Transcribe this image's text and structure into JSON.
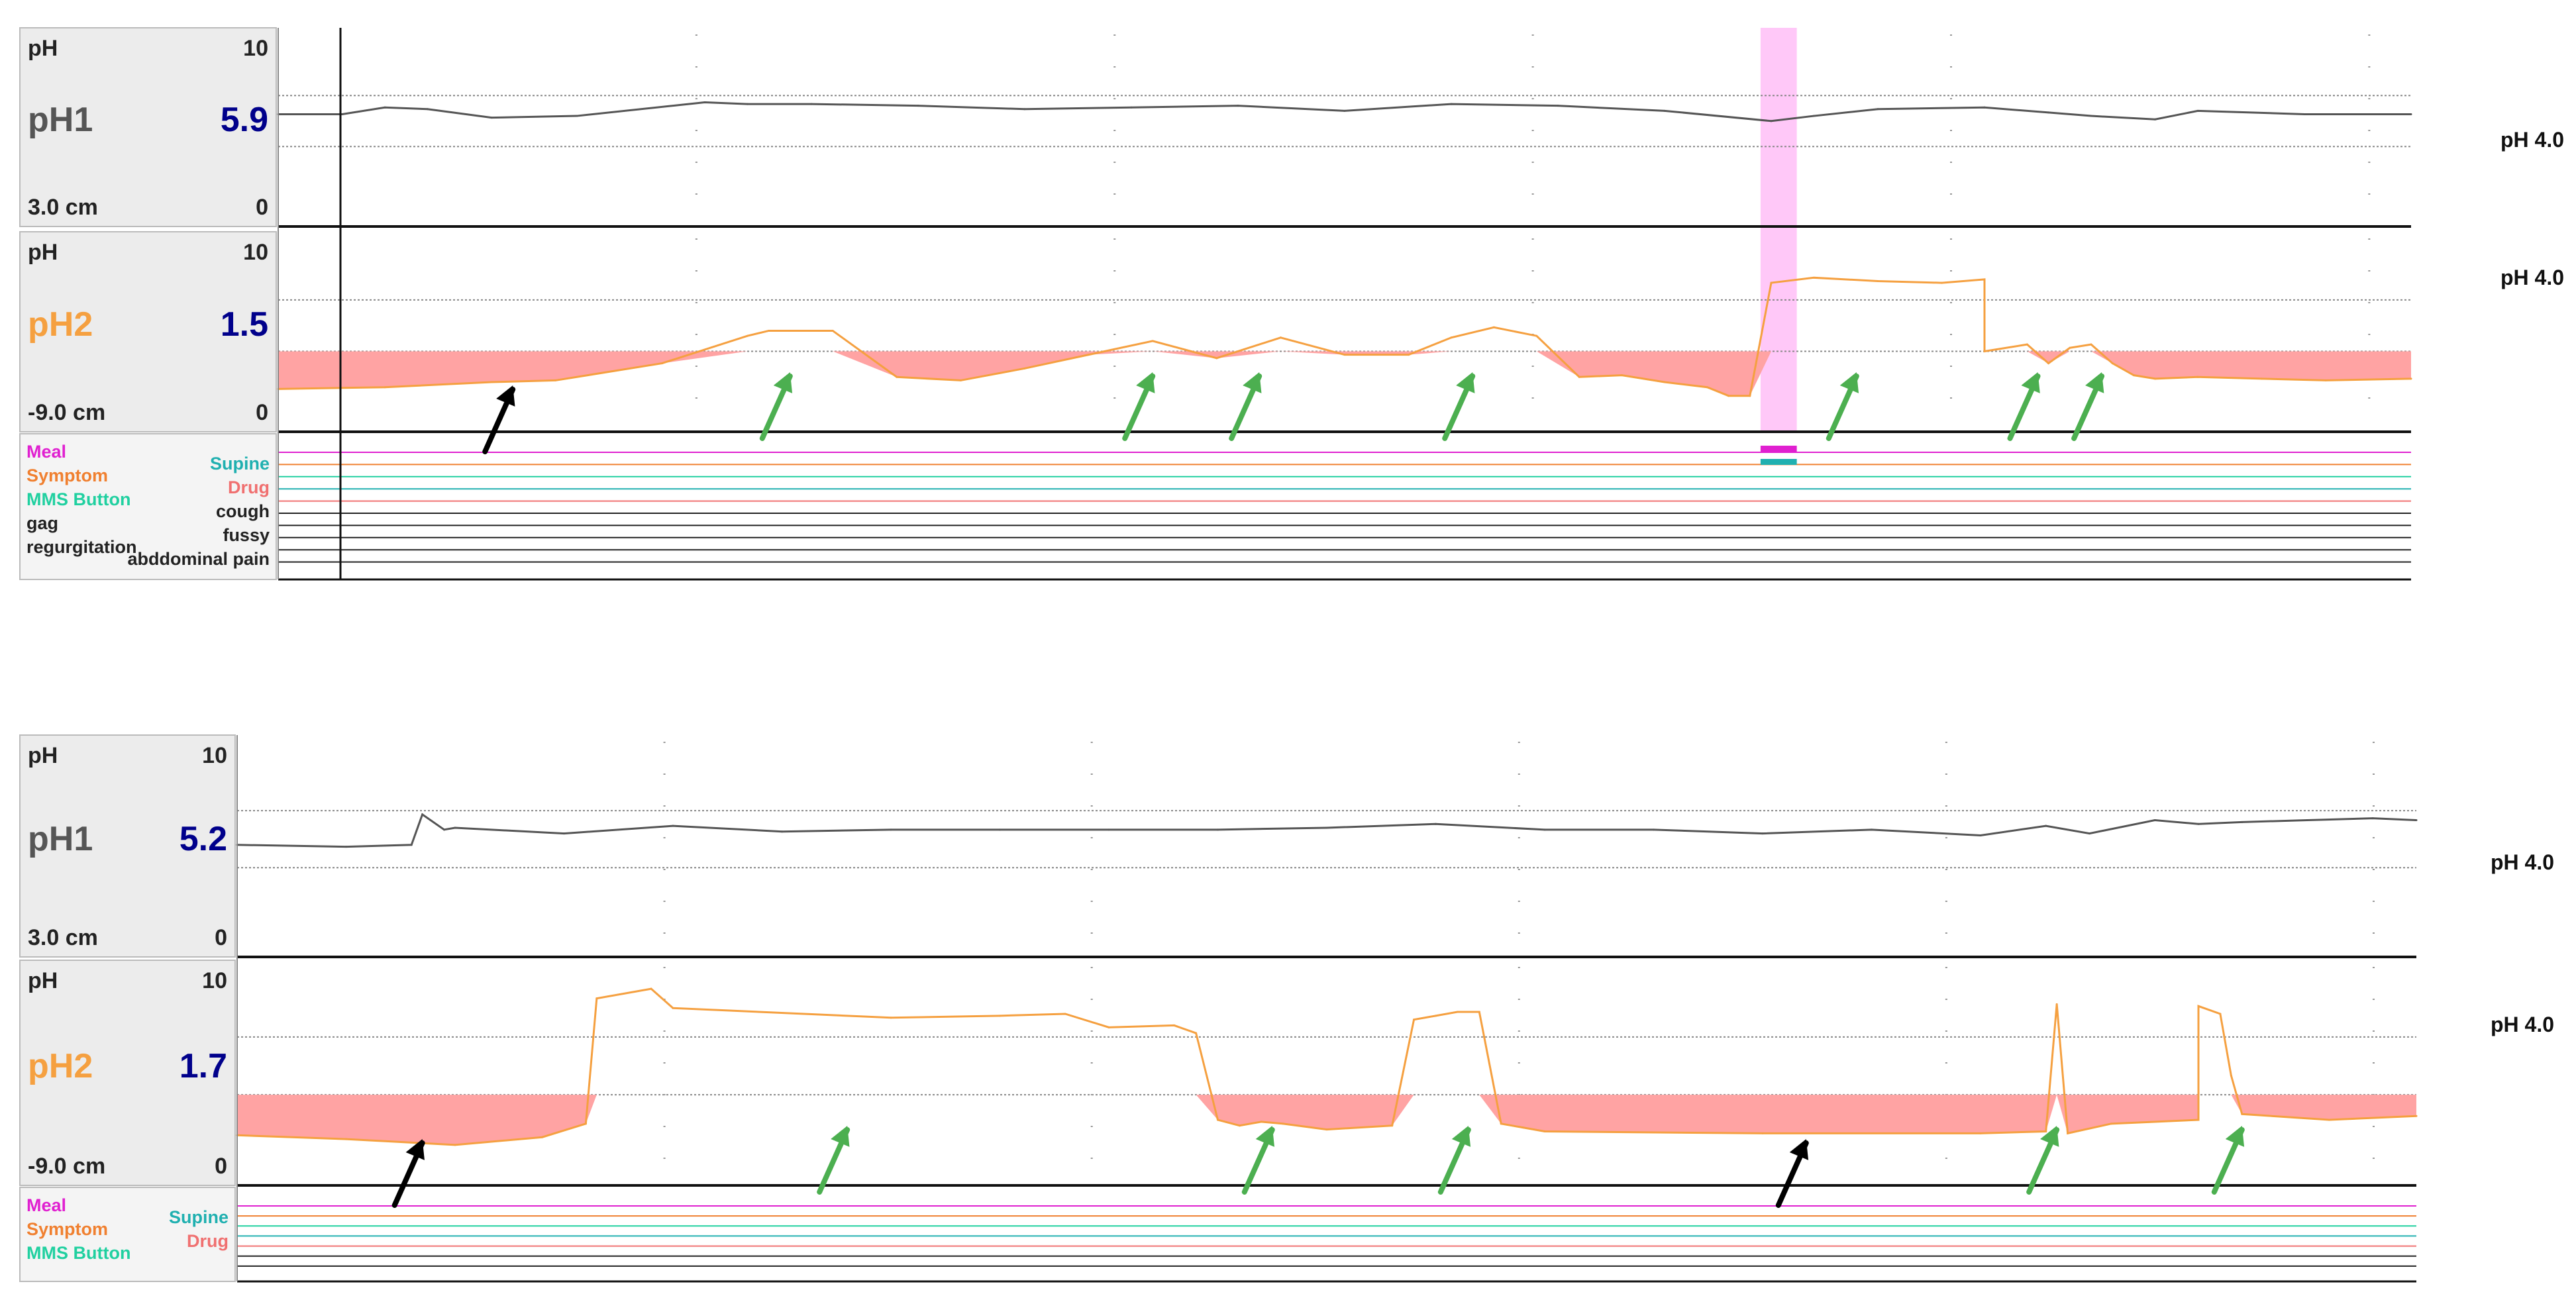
{
  "colors": {
    "ph1_line": "#555555",
    "ph2_line": "#f5a040",
    "acid_fill": "#ffa3a3",
    "value_blue": "#00008b",
    "ph2_label": "#f5a040",
    "panel_bg": "#ececec",
    "meal": "#e020d0",
    "symptom": "#f08030",
    "mms": "#20d0a0",
    "supine": "#20b0b0",
    "drug": "#f07070",
    "dark": "#222222",
    "green_arrow": "#4caf50",
    "black_arrow": "#000000",
    "highlight": "#ffc8f8"
  },
  "threshold_label": "pH 4.0",
  "recordings": [
    {
      "channels": [
        {
          "unit": "pH",
          "max": "10",
          "min": "0",
          "name": "pH1",
          "value": "5.9",
          "position": "3.0 cm"
        },
        {
          "unit": "pH",
          "max": "10",
          "min": "0",
          "name": "pH2",
          "value": "1.5",
          "position": "-9.0 cm"
        }
      ],
      "events_left": [
        "Meal",
        "Symptom",
        "MMS Button",
        "gag",
        "regurgitation"
      ],
      "events_right": [
        "Supine",
        "Drug",
        "cough",
        "fussy",
        "abddominal pain"
      ],
      "has_marker_band": true
    },
    {
      "channels": [
        {
          "unit": "pH",
          "max": "10",
          "min": "0",
          "name": "pH1",
          "value": "5.2",
          "position": "3.0 cm"
        },
        {
          "unit": "pH",
          "max": "10",
          "min": "0",
          "name": "pH2",
          "value": "1.7",
          "position": "-9.0 cm"
        }
      ],
      "events_left": [
        "Meal",
        "Symptom",
        "MMS Button"
      ],
      "events_right": [
        "Supine",
        "Drug"
      ],
      "has_marker_band": false
    }
  ],
  "chart_data": [
    {
      "type": "line",
      "title": "",
      "xlabel": "",
      "ylabel": "pH",
      "ylim": [
        0,
        10
      ],
      "threshold": 4.0,
      "grid": "dotted",
      "series": [
        {
          "name": "pH1",
          "x": [
            0,
            0.03,
            0.05,
            0.07,
            0.1,
            0.14,
            0.2,
            0.22,
            0.25,
            0.3,
            0.35,
            0.4,
            0.45,
            0.5,
            0.55,
            0.6,
            0.65,
            0.7,
            0.72,
            0.75,
            0.8,
            0.83,
            0.85,
            0.88,
            0.9,
            0.95,
            1
          ],
          "y": [
            5.9,
            5.9,
            6.3,
            6.2,
            5.7,
            5.8,
            6.6,
            6.5,
            6.5,
            6.4,
            6.2,
            6.3,
            6.4,
            6.1,
            6.5,
            6.4,
            6.1,
            5.5,
            5.8,
            6.2,
            6.3,
            6.0,
            5.8,
            5.6,
            6.1,
            5.9,
            5.9
          ]
        },
        {
          "name": "pH2",
          "x": [
            0,
            0.05,
            0.1,
            0.13,
            0.18,
            0.22,
            0.23,
            0.26,
            0.29,
            0.32,
            0.35,
            0.38,
            0.41,
            0.44,
            0.47,
            0.5,
            0.53,
            0.55,
            0.57,
            0.59,
            0.61,
            0.63,
            0.65,
            0.67,
            0.68,
            0.69,
            0.7,
            0.72,
            0.75,
            0.78,
            0.8,
            0.8,
            0.82,
            0.83,
            0.84,
            0.85,
            0.86,
            0.87,
            0.88,
            0.9,
            0.93,
            0.96,
            1
          ],
          "y": [
            1.8,
            1.9,
            2.2,
            2.3,
            3.3,
            4.9,
            5.2,
            5.2,
            2.5,
            2.3,
            3.0,
            3.8,
            4.6,
            3.6,
            4.8,
            3.8,
            3.8,
            4.8,
            5.4,
            4.9,
            2.5,
            2.6,
            2.2,
            1.9,
            1.4,
            1.4,
            8.0,
            8.3,
            8.1,
            8.0,
            8.2,
            4.0,
            4.4,
            3.3,
            4.2,
            4.4,
            3.3,
            2.6,
            2.4,
            2.5,
            2.4,
            2.3,
            2.4
          ]
        }
      ],
      "annotations": {
        "black_arrows_x": [
          0.11
        ],
        "green_arrows_x": [
          0.24,
          0.41,
          0.46,
          0.56,
          0.74,
          0.825,
          0.855
        ]
      },
      "highlight_region_x": [
        0.695,
        0.712
      ]
    },
    {
      "type": "line",
      "title": "",
      "xlabel": "",
      "ylabel": "pH",
      "ylim": [
        0,
        10
      ],
      "threshold": 4.0,
      "grid": "dotted",
      "series": [
        {
          "name": "pH1",
          "x": [
            0,
            0.05,
            0.08,
            0.085,
            0.095,
            0.1,
            0.15,
            0.2,
            0.25,
            0.3,
            0.35,
            0.4,
            0.45,
            0.5,
            0.55,
            0.6,
            0.65,
            0.7,
            0.75,
            0.8,
            0.83,
            0.85,
            0.88,
            0.9,
            0.92,
            0.95,
            0.98,
            1
          ],
          "y": [
            5.2,
            5.1,
            5.2,
            6.8,
            6.0,
            6.1,
            5.8,
            6.2,
            5.9,
            6.0,
            6.0,
            6.0,
            6.0,
            6.1,
            6.3,
            6.0,
            6.0,
            5.8,
            6.0,
            5.7,
            6.2,
            5.8,
            6.5,
            6.3,
            6.4,
            6.5,
            6.6,
            6.5
          ]
        },
        {
          "name": "pH2",
          "x": [
            0,
            0.05,
            0.1,
            0.14,
            0.16,
            0.165,
            0.19,
            0.2,
            0.3,
            0.35,
            0.38,
            0.4,
            0.43,
            0.44,
            0.45,
            0.46,
            0.47,
            0.48,
            0.5,
            0.53,
            0.54,
            0.55,
            0.56,
            0.57,
            0.58,
            0.59,
            0.6,
            0.7,
            0.8,
            0.83,
            0.835,
            0.84,
            0.86,
            0.9,
            0.9,
            0.91,
            0.915,
            0.92,
            0.96,
            1
          ],
          "y": [
            1.9,
            1.7,
            1.4,
            1.8,
            2.5,
            9.0,
            9.5,
            8.5,
            8.0,
            8.1,
            8.2,
            7.5,
            7.6,
            7.2,
            2.7,
            2.4,
            2.6,
            2.5,
            2.2,
            2.4,
            7.9,
            8.1,
            8.3,
            8.3,
            2.5,
            2.3,
            2.1,
            2.0,
            2.0,
            2.1,
            8.7,
            2.0,
            2.5,
            2.7,
            8.6,
            8.2,
            5.0,
            3.0,
            2.7,
            2.9
          ]
        }
      ],
      "annotations": {
        "black_arrows_x": [
          0.085,
          0.72
        ],
        "green_arrows_x": [
          0.28,
          0.475,
          0.565,
          0.835,
          0.92
        ]
      }
    }
  ]
}
